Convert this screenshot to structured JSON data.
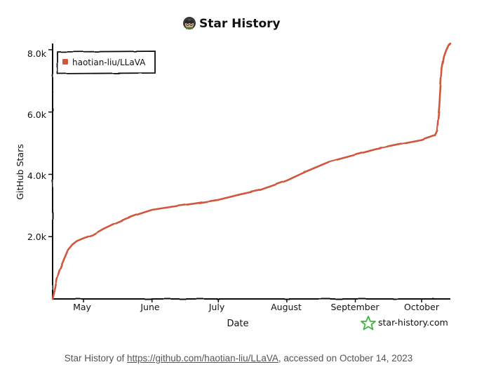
{
  "chart_data": {
    "type": "line",
    "title": "Star History",
    "xlabel": "Date",
    "ylabel": "GitHub Stars",
    "x_ticks": [
      "May",
      "June",
      "July",
      "August",
      "September",
      "October"
    ],
    "y_ticks": [
      "2.0k",
      "4.0k",
      "6.0k",
      "8.0k"
    ],
    "ylim": [
      0,
      8200
    ],
    "xlim": [
      "2023-04-17",
      "2023-10-14"
    ],
    "grid": false,
    "legend_position": "top-left",
    "series": [
      {
        "name": "haotian-liu/LLaVA",
        "color": "#d0573c",
        "x": [
          "2023-04-17",
          "2023-04-18",
          "2023-04-19",
          "2023-04-20",
          "2023-04-22",
          "2023-04-24",
          "2023-04-26",
          "2023-04-28",
          "2023-05-01",
          "2023-05-05",
          "2023-05-10",
          "2023-05-15",
          "2023-05-20",
          "2023-05-25",
          "2023-06-01",
          "2023-06-10",
          "2023-06-20",
          "2023-07-01",
          "2023-07-10",
          "2023-07-20",
          "2023-08-01",
          "2023-08-10",
          "2023-08-20",
          "2023-09-01",
          "2023-09-10",
          "2023-09-20",
          "2023-10-01",
          "2023-10-07",
          "2023-10-08",
          "2023-10-09",
          "2023-10-10",
          "2023-10-11",
          "2023-10-12",
          "2023-10-13",
          "2023-10-14"
        ],
        "values": [
          0,
          300,
          650,
          900,
          1250,
          1580,
          1750,
          1860,
          1950,
          2050,
          2250,
          2420,
          2570,
          2700,
          2860,
          2960,
          3060,
          3180,
          3340,
          3500,
          3800,
          4100,
          4400,
          4630,
          4800,
          4950,
          5100,
          5250,
          5400,
          6200,
          7400,
          7800,
          8000,
          8150,
          8200
        ]
      }
    ]
  },
  "watermark": "star-history.com",
  "caption": {
    "prefix": "Star History of ",
    "link": "https://github.com/haotian-liu/LLaVA",
    "suffix": ", accessed on October 14, 2023"
  }
}
